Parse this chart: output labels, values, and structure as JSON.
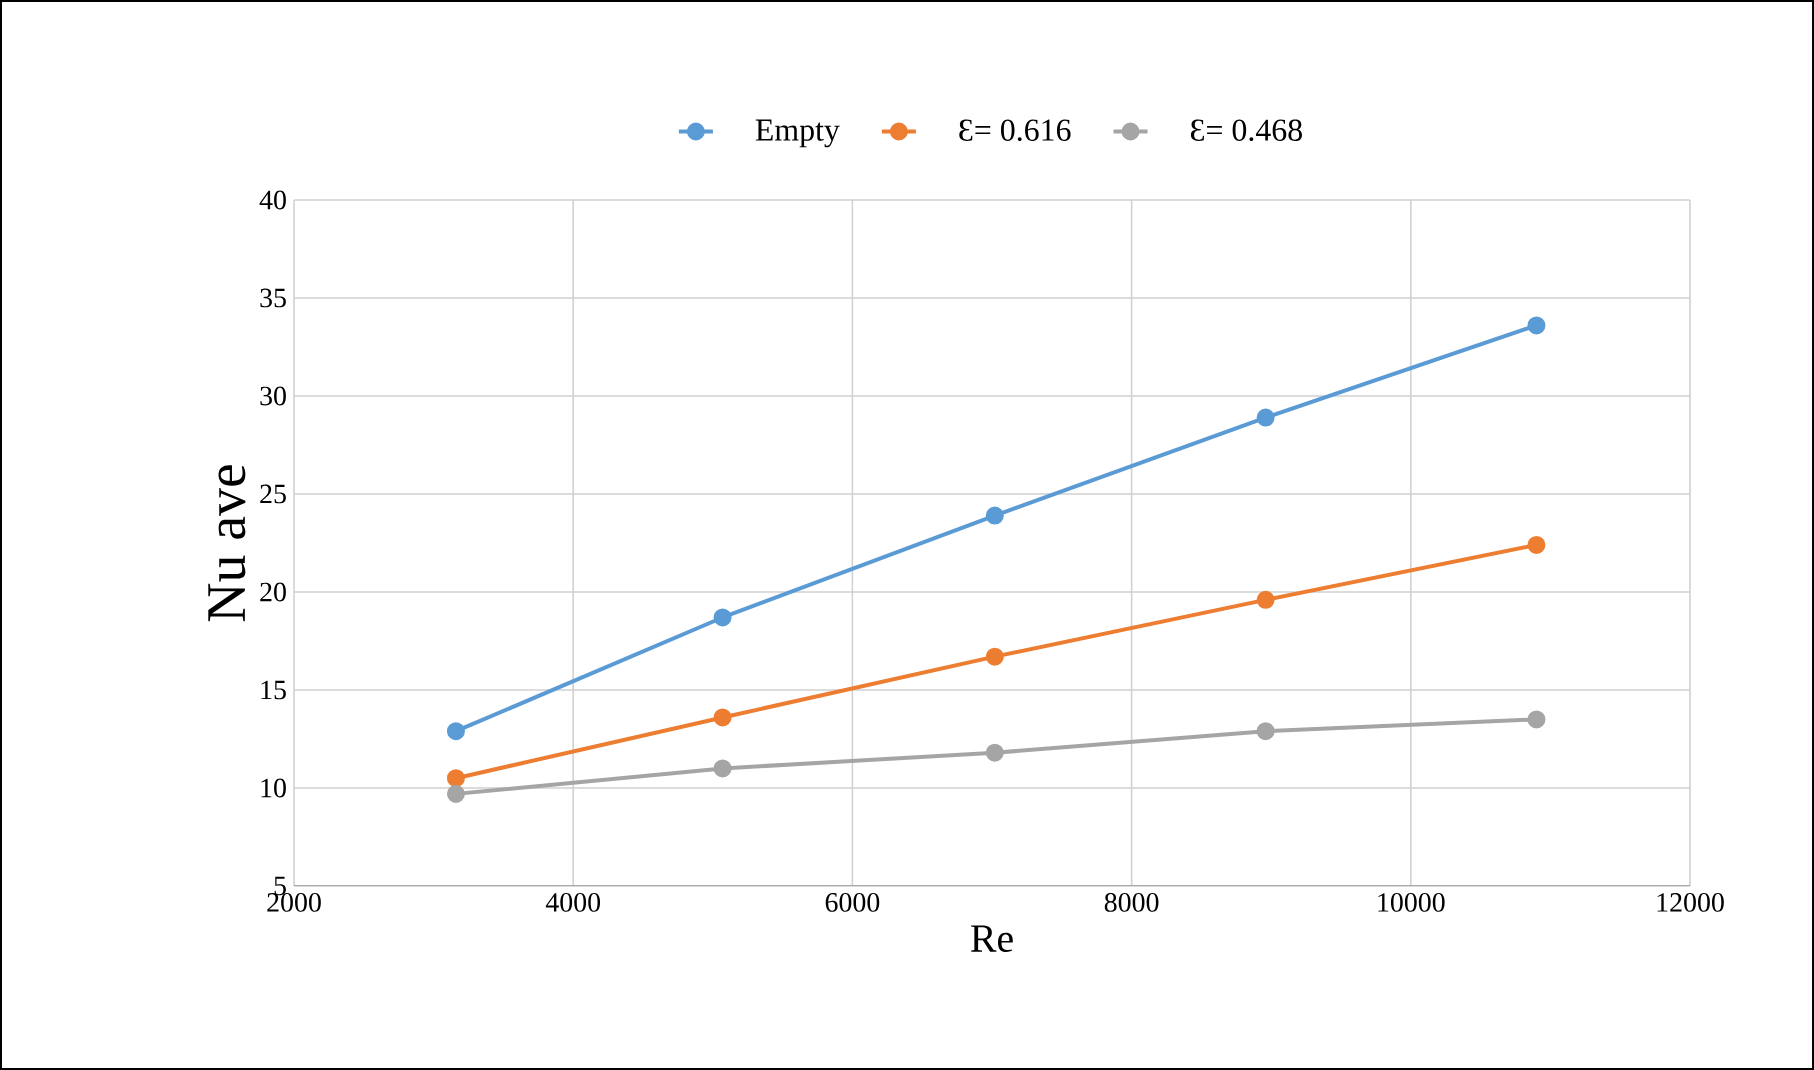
{
  "chart_data": {
    "type": "line",
    "xlabel": "Re",
    "ylabel": "Nu ave",
    "x": [
      3160,
      5070,
      7020,
      8960,
      10900
    ],
    "series": [
      {
        "name": "Empty",
        "color": "#5b9bd5",
        "values": [
          12.9,
          18.7,
          23.9,
          28.9,
          33.6
        ]
      },
      {
        "name": "Ɛ= 0.616",
        "color": "#ed7d31",
        "values": [
          10.5,
          13.6,
          16.7,
          19.6,
          22.4
        ]
      },
      {
        "name": "Ɛ= 0.468",
        "color": "#a5a5a5",
        "values": [
          9.7,
          11.0,
          11.8,
          12.9,
          13.5
        ]
      }
    ],
    "xlim": [
      2000,
      12000
    ],
    "xticks": [
      2000,
      4000,
      6000,
      8000,
      10000,
      12000
    ],
    "ylim": [
      5,
      40
    ],
    "yticks": [
      5,
      10,
      15,
      20,
      25,
      30,
      35,
      40
    ],
    "grid": true,
    "legend": "top",
    "marker": "circle",
    "line_style": "solid"
  }
}
